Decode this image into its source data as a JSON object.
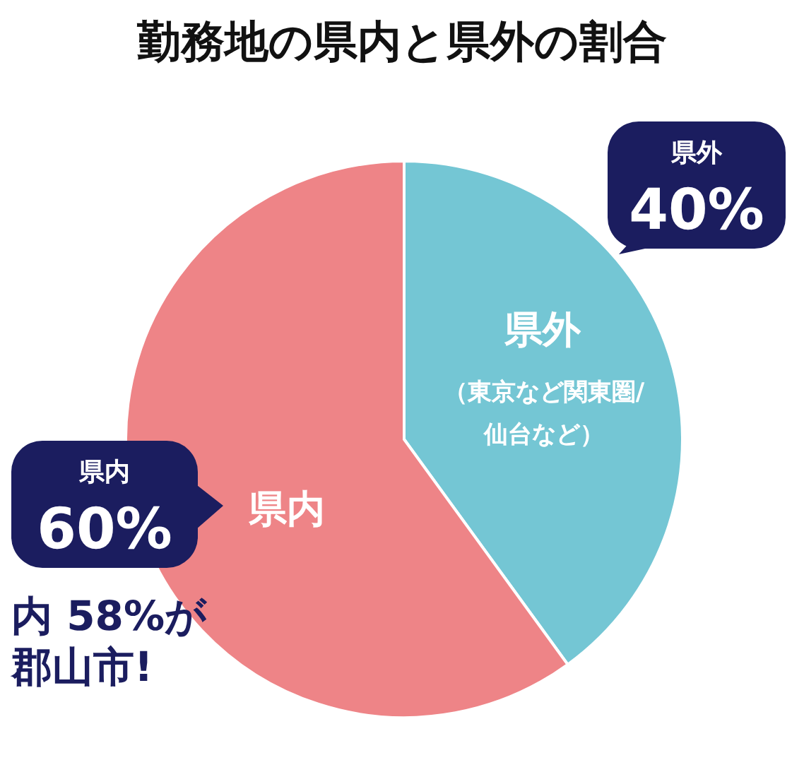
{
  "chart_data": {
    "type": "pie",
    "title": "勤務地の県内と県外の割合",
    "categories": [
      "県外",
      "県内"
    ],
    "values": [
      40,
      60
    ],
    "colors": [
      "#74c6d4",
      "#ee8487"
    ],
    "value_labels": [
      "40%",
      "60%"
    ],
    "annotations": [
      "（東京など関東圏/仙台など）",
      "内 58%が郡山市!"
    ]
  }
}
